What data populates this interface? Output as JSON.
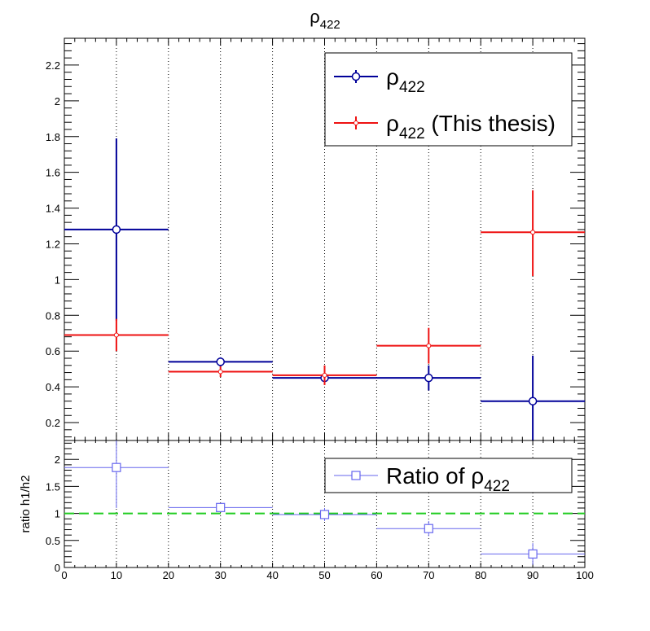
{
  "title": {
    "main": "ρ",
    "sub": "422"
  },
  "chart_data": [
    {
      "type": "scatter",
      "panel": "top",
      "xlim": [
        0,
        100
      ],
      "ylim": [
        0.1,
        2.35
      ],
      "x_ticks": [
        0,
        10,
        20,
        30,
        40,
        50,
        60,
        70,
        80,
        90,
        100
      ],
      "y_ticks": [
        0.2,
        0.4,
        0.6,
        0.8,
        1,
        1.2,
        1.4,
        1.6,
        1.8,
        2,
        2.2
      ],
      "y_tick_labels": [
        "0.2",
        "0.4",
        "0.6",
        "0.8",
        "1",
        "1.2",
        "1.4",
        "1.6",
        "1.8",
        "2",
        "2.2"
      ],
      "grid_x": true,
      "legend_position": "top-right",
      "series": [
        {
          "name": "ρ",
          "name_sub": "422",
          "color": "#000099",
          "marker": "circle",
          "points": [
            {
              "x": 10,
              "xlo": 0,
              "xhi": 20,
              "y": 1.28,
              "ylo": 0.77,
              "yhi": 1.79
            },
            {
              "x": 30,
              "xlo": 20,
              "xhi": 40,
              "y": 0.54,
              "ylo": 0.515,
              "yhi": 0.565
            },
            {
              "x": 50,
              "xlo": 40,
              "xhi": 60,
              "y": 0.45,
              "ylo": 0.43,
              "yhi": 0.47
            },
            {
              "x": 70,
              "xlo": 60,
              "xhi": 80,
              "y": 0.45,
              "ylo": 0.38,
              "yhi": 0.52
            },
            {
              "x": 90,
              "xlo": 80,
              "xhi": 100,
              "y": 0.32,
              "ylo": 0.1,
              "yhi": 0.575
            }
          ]
        },
        {
          "name": "ρ",
          "name_sub": "422",
          "name_suffix": " (This thesis)",
          "color": "#ee1111",
          "marker": "small-circle",
          "points": [
            {
              "x": 10,
              "xlo": 0,
              "xhi": 20,
              "y": 0.69,
              "ylo": 0.6,
              "yhi": 0.78
            },
            {
              "x": 30,
              "xlo": 20,
              "xhi": 40,
              "y": 0.485,
              "ylo": 0.455,
              "yhi": 0.515
            },
            {
              "x": 50,
              "xlo": 40,
              "xhi": 60,
              "y": 0.465,
              "ylo": 0.41,
              "yhi": 0.52
            },
            {
              "x": 70,
              "xlo": 60,
              "xhi": 80,
              "y": 0.63,
              "ylo": 0.53,
              "yhi": 0.73
            },
            {
              "x": 90,
              "xlo": 80,
              "xhi": 100,
              "y": 1.265,
              "ylo": 1.02,
              "yhi": 1.5
            }
          ]
        }
      ]
    },
    {
      "type": "scatter",
      "panel": "ratio",
      "xlim": [
        0,
        100
      ],
      "ylim": [
        0,
        2.35
      ],
      "x_ticks": [
        0,
        10,
        20,
        30,
        40,
        50,
        60,
        70,
        80,
        90,
        100
      ],
      "x_tick_labels": [
        "0",
        "10",
        "20",
        "30",
        "40",
        "50",
        "60",
        "70",
        "80",
        "90",
        "100"
      ],
      "y_ticks": [
        0,
        0.5,
        1,
        1.5,
        2
      ],
      "y_tick_labels": [
        "0",
        "0.5",
        "1",
        "1.5",
        "2"
      ],
      "ylabel": "ratio h1/h2",
      "reference_line": {
        "y": 1,
        "color": "#22cc22",
        "style": "dashed"
      },
      "grid_x": true,
      "legend_position": "top-right",
      "series": [
        {
          "name": "Ratio of ρ",
          "name_sub": "422",
          "color": "#6666ee",
          "marker": "square",
          "points": [
            {
              "x": 10,
              "xlo": 0,
              "xhi": 20,
              "y": 1.85,
              "ylo": 1.1,
              "yhi": 2.35
            },
            {
              "x": 30,
              "xlo": 20,
              "xhi": 40,
              "y": 1.11,
              "ylo": 1.05,
              "yhi": 1.17
            },
            {
              "x": 50,
              "xlo": 40,
              "xhi": 60,
              "y": 0.98,
              "ylo": 0.86,
              "yhi": 1.1
            },
            {
              "x": 70,
              "xlo": 60,
              "xhi": 80,
              "y": 0.72,
              "ylo": 0.58,
              "yhi": 0.86
            },
            {
              "x": 90,
              "xlo": 80,
              "xhi": 100,
              "y": 0.25,
              "ylo": 0.05,
              "yhi": 0.45
            }
          ]
        }
      ]
    }
  ]
}
